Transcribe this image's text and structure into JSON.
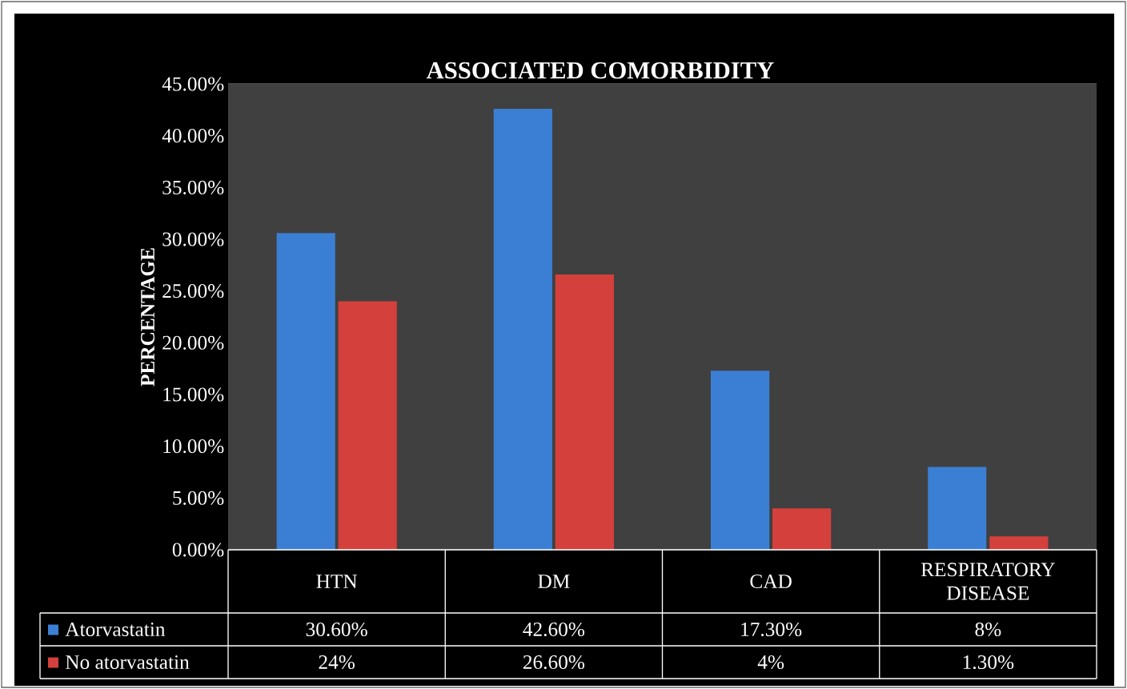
{
  "chart_data": {
    "type": "bar",
    "title": "ASSOCIATED COMORBIDITY",
    "ylabel": "PERCENTAGE",
    "categories": [
      "HTN",
      "DM",
      "CAD",
      "RESPIRATORY DISEASE"
    ],
    "series": [
      {
        "name": "Atorvastatin",
        "color": "#3b7fd4",
        "values": [
          30.6,
          42.6,
          17.3,
          8
        ],
        "value_labels": [
          "30.60%",
          "42.60%",
          "17.30%",
          "8%"
        ]
      },
      {
        "name": "No atorvastatin",
        "color": "#d4403c",
        "values": [
          24,
          26.6,
          4,
          1.3
        ],
        "value_labels": [
          "24%",
          "26.60%",
          "4%",
          "1.30%"
        ]
      }
    ],
    "ylim": [
      0,
      45
    ],
    "yticks": [
      {
        "value": 0,
        "label": "0.00%"
      },
      {
        "value": 5,
        "label": "5.00%"
      },
      {
        "value": 10,
        "label": "10.00%"
      },
      {
        "value": 15,
        "label": "15.00%"
      },
      {
        "value": 20,
        "label": "20.00%"
      },
      {
        "value": 25,
        "label": "25.00%"
      },
      {
        "value": 30,
        "label": "30.00%"
      },
      {
        "value": 35,
        "label": "35.00%"
      },
      {
        "value": 40,
        "label": "40.00%"
      },
      {
        "value": 45,
        "label": "45.00%"
      }
    ],
    "grid": "y",
    "legend": "bottom left"
  }
}
